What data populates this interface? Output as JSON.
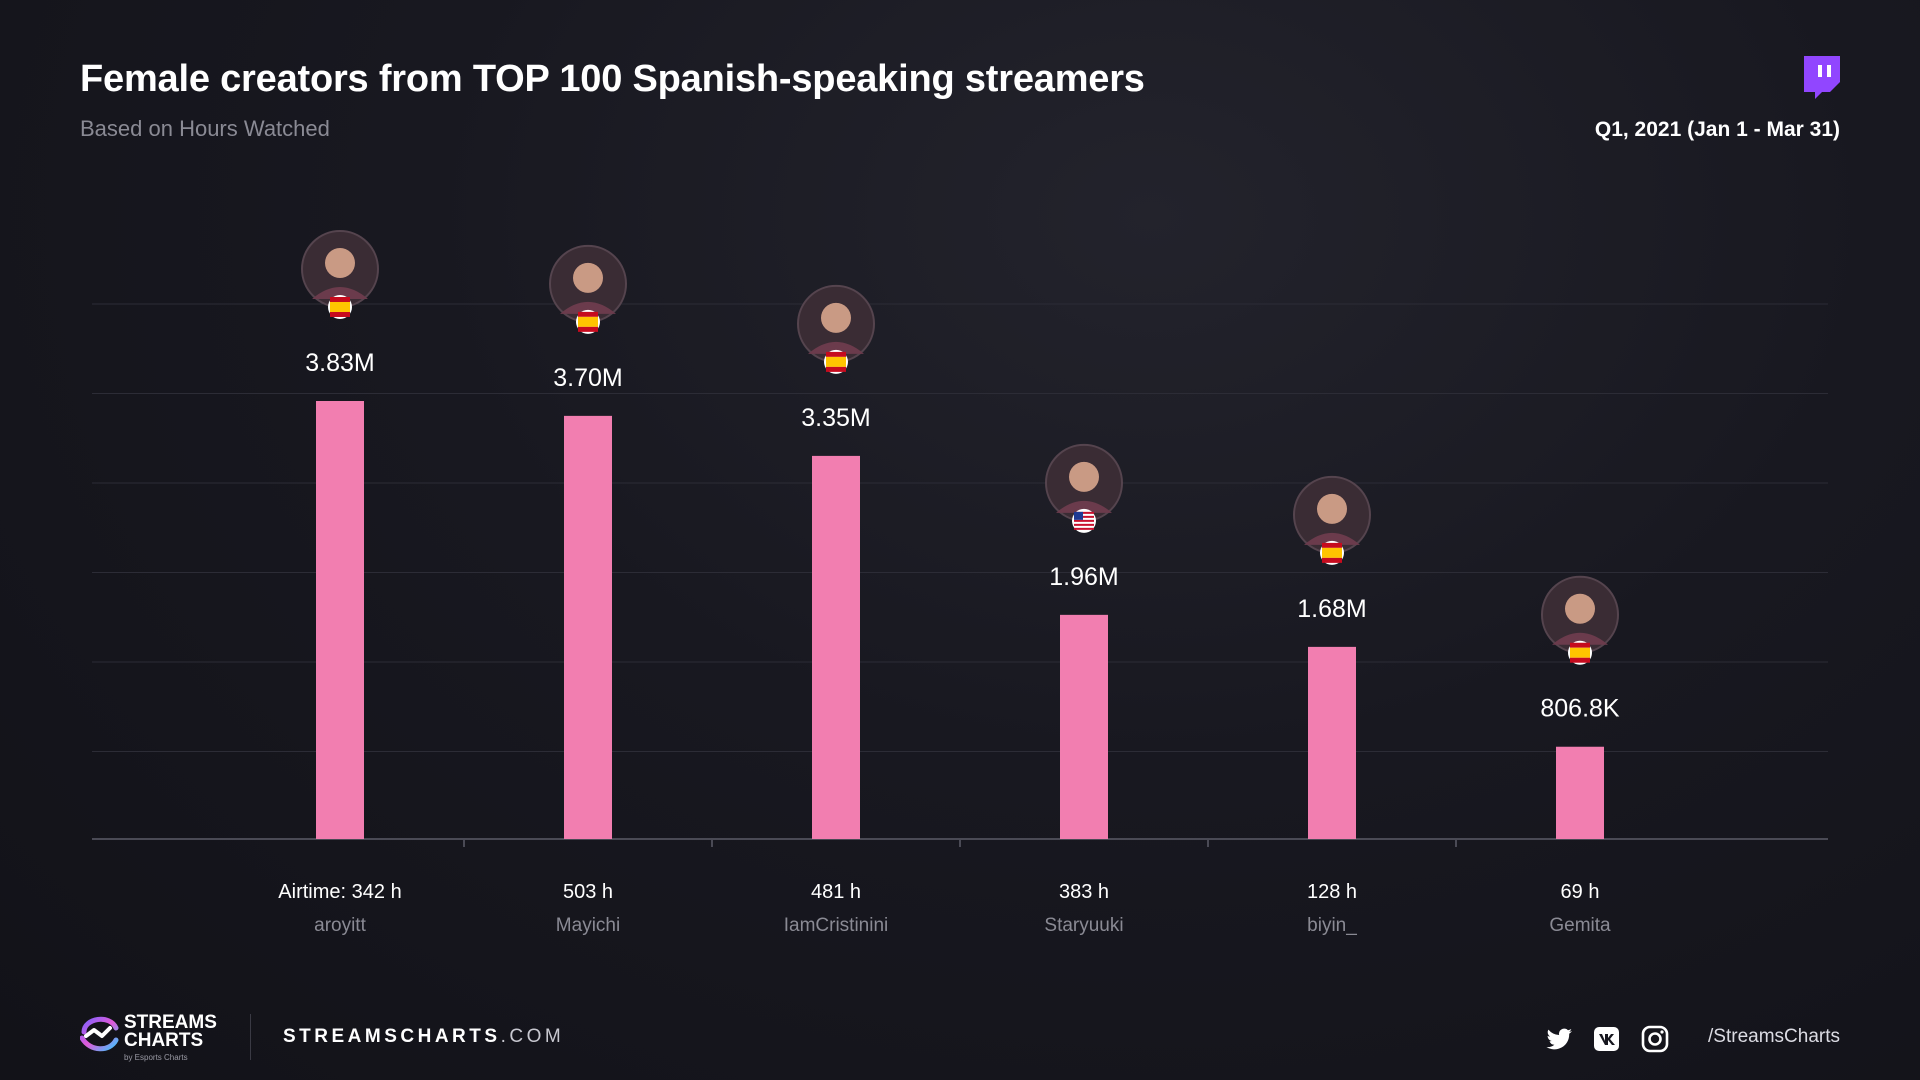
{
  "header": {
    "title": "Female creators from TOP 100 Spanish-speaking streamers",
    "subtitle": "Based on Hours Watched",
    "period": "Q1, 2021 (Jan 1 - Mar 31)"
  },
  "colors": {
    "bar": "#f27eb0",
    "grid": "#2c2c36",
    "axis": "#4a4a55",
    "muted": "#8a8a94"
  },
  "chart_data": {
    "type": "bar",
    "categories": [
      "aroyitt",
      "Mayichi",
      "IamCristinini",
      "Staryuuki",
      "biyin_",
      "Gemita"
    ],
    "values": [
      3830000,
      3700000,
      3350000,
      1960000,
      1680000,
      806800
    ],
    "value_labels": [
      "3.83M",
      "3.70M",
      "3.35M",
      "1.96M",
      "1.68M",
      "806.8K"
    ],
    "airtime_labels": [
      "Airtime: 342 h",
      "503 h",
      "481 h",
      "383 h",
      "128 h",
      "69 h"
    ],
    "flags": [
      "spain-flag-icon",
      "spain-flag-icon",
      "spain-flag-icon",
      "usa-flag-icon",
      "spain-flag-icon",
      "spain-flag-icon"
    ],
    "avatars": [
      "avatar-aroyitt",
      "avatar-mayichi",
      "avatar-iamcristinini",
      "avatar-staryuuki",
      "avatar-biyin",
      "avatar-gemita"
    ],
    "ylim": [
      0,
      3830000
    ],
    "grid": true,
    "title": "Female creators from TOP 100 Spanish-speaking streamers",
    "xlabel": "",
    "ylabel": ""
  },
  "footer": {
    "brand_line1": "STREAMS",
    "brand_line2": "CHARTS",
    "brand_sub": "by Esports Charts",
    "site_bold": "STREAMSCHARTS",
    "site_tail": ".COM",
    "handle": "/StreamsCharts",
    "social_icons": [
      "twitter-icon",
      "vk-icon",
      "instagram-icon"
    ]
  }
}
